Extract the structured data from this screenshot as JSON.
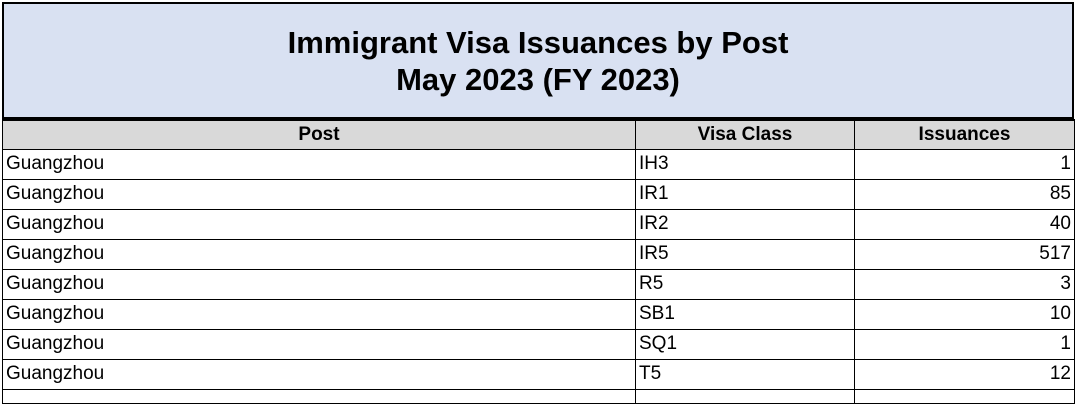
{
  "report": {
    "title_line1": "Immigrant Visa Issuances by Post",
    "title_line2": "May 2023 (FY 2023)"
  },
  "table": {
    "headers": [
      "Post",
      "Visa Class",
      "Issuances"
    ],
    "rows": [
      [
        "Guangzhou",
        "IH3",
        "1"
      ],
      [
        "Guangzhou",
        "IR1",
        "85"
      ],
      [
        "Guangzhou",
        "IR2",
        "40"
      ],
      [
        "Guangzhou",
        "IR5",
        "517"
      ],
      [
        "Guangzhou",
        "R5",
        "3"
      ],
      [
        "Guangzhou",
        "SB1",
        "10"
      ],
      [
        "Guangzhou",
        "SQ1",
        "1"
      ],
      [
        "Guangzhou",
        "T5",
        "12"
      ]
    ]
  },
  "colors": {
    "title_background": "#d9e1f2",
    "header_background": "#d9d9d9",
    "border": "#000000"
  }
}
